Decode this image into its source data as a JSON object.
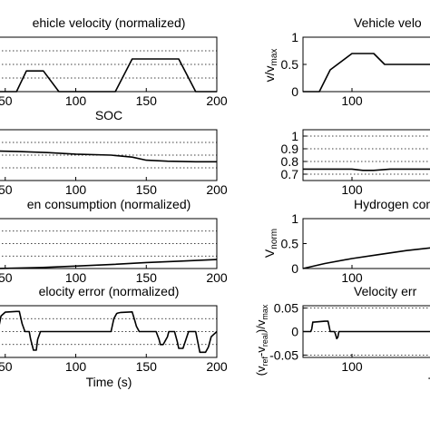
{
  "chart_data": [
    {
      "type": "line",
      "title": "Vehicle velocity (normalized)",
      "title_visible": "ehicle velocity (normalized)",
      "xticks": [
        "50",
        "100",
        "150",
        "200"
      ],
      "xlim": [
        45,
        200
      ],
      "ylim": [
        0,
        1
      ],
      "grid": "dotted-horizontal",
      "series": [
        {
          "x": [
            45,
            58,
            65,
            75,
            77,
            88,
            99,
            125,
            128,
            140,
            155,
            170,
            173,
            185,
            200
          ],
          "y": [
            0,
            0,
            0.38,
            0.38,
            0.38,
            0,
            0,
            0,
            0,
            0.6,
            0.6,
            0.6,
            0.6,
            0,
            0
          ]
        }
      ]
    },
    {
      "type": "line",
      "title": "SOC",
      "xticks": [
        "50",
        "100",
        "150",
        "200"
      ],
      "xlim": [
        45,
        200
      ],
      "ylim": [
        0,
        1
      ],
      "grid": "dotted-horizontal",
      "series": [
        {
          "x": [
            45,
            60,
            80,
            100,
            125,
            140,
            150,
            165,
            185,
            200
          ],
          "y": [
            0.58,
            0.57,
            0.55,
            0.52,
            0.5,
            0.46,
            0.4,
            0.38,
            0.37,
            0.37
          ]
        }
      ]
    },
    {
      "type": "line",
      "title": "Hydrogen consumption (normalized)",
      "title_visible": "en consumption (normalized)",
      "xticks": [
        "50",
        "100",
        "150",
        "200"
      ],
      "xlim": [
        45,
        200
      ],
      "ylim": [
        0,
        1
      ],
      "grid": "dotted-horizontal",
      "series": [
        {
          "x": [
            45,
            75,
            100,
            125,
            150,
            175,
            200
          ],
          "y": [
            0,
            0.02,
            0.05,
            0.08,
            0.12,
            0.15,
            0.18
          ]
        }
      ]
    },
    {
      "type": "line",
      "title": "Velocity error (normalized)",
      "title_visible": "elocity error (normalized)",
      "xticks": [
        "50",
        "100",
        "150",
        "200"
      ],
      "xlabel": "Time (s)",
      "xlim": [
        45,
        200
      ],
      "ylim": [
        -1,
        1
      ],
      "grid": "dotted-horizontal",
      "series": [
        {
          "x": [
            45,
            47,
            50,
            58,
            60,
            62,
            64,
            65,
            67,
            68,
            70,
            72,
            73,
            75,
            77,
            78,
            86,
            98,
            104,
            112,
            125,
            127,
            129,
            130,
            132,
            140,
            142,
            143,
            145,
            157,
            159,
            160,
            162,
            165,
            166,
            170,
            172,
            173,
            176,
            180,
            184,
            185,
            188,
            192,
            194,
            196,
            200
          ],
          "y": [
            0.05,
            0.6,
            0.75,
            0.78,
            0.78,
            0.3,
            0,
            0,
            0,
            -0.3,
            -0.72,
            -0.72,
            -0.3,
            0,
            0,
            0,
            0,
            0,
            0,
            0,
            0,
            0.5,
            0.7,
            0.72,
            0.74,
            0.76,
            0.4,
            0.2,
            0,
            0,
            -0.3,
            -0.5,
            -0.5,
            -0.2,
            0,
            0,
            -0.4,
            -0.65,
            -0.65,
            0,
            0,
            0,
            -0.8,
            -0.8,
            -0.6,
            -0.2,
            0
          ]
        }
      ]
    },
    {
      "type": "line",
      "title": "Vehicle velocity",
      "title_visible": "Vehicle velo",
      "ylabel": "v/v_max",
      "yticks": [
        "1",
        "0.5",
        "0"
      ],
      "ylim": [
        0,
        1
      ],
      "xticks": [
        "100"
      ],
      "xlim": [
        55,
        175
      ],
      "series": [
        {
          "x": [
            55,
            70,
            80,
            100,
            120,
            130,
            175
          ],
          "y": [
            0,
            0,
            0.4,
            0.7,
            0.7,
            0.5,
            0.5
          ]
        }
      ]
    },
    {
      "type": "line",
      "title": "",
      "yticks": [
        "1",
        "0.9",
        "0.8",
        "0.7"
      ],
      "ylim": [
        0.65,
        1.05
      ],
      "xticks": [
        "100"
      ],
      "xlim": [
        55,
        175
      ],
      "grid": "dotted-horizontal",
      "series": [
        {
          "x": [
            55,
            80,
            100,
            110,
            120,
            135,
            150,
            175
          ],
          "y": [
            0.74,
            0.74,
            0.74,
            0.73,
            0.73,
            0.74,
            0.74,
            0.74
          ]
        }
      ]
    },
    {
      "type": "line",
      "title": "Hydrogen consumption",
      "title_visible": "Hydrogen consu",
      "ylabel": "V_norm",
      "yticks": [
        "1",
        "0.5",
        "0"
      ],
      "ylim": [
        0,
        1
      ],
      "xticks": [
        "100"
      ],
      "xlim": [
        55,
        175
      ],
      "series": [
        {
          "x": [
            55,
            75,
            100,
            125,
            150,
            175
          ],
          "y": [
            0,
            0.1,
            0.2,
            0.28,
            0.36,
            0.42
          ]
        }
      ]
    },
    {
      "type": "line",
      "title": "Velocity error",
      "title_visible": "Velocity err",
      "ylabel": "(v_ref-v_real)/v_max",
      "xlabel_visible": "T",
      "yticks": [
        "0.05",
        "0",
        "-0.05"
      ],
      "ylim": [
        -0.055,
        0.055
      ],
      "xticks": [
        "100"
      ],
      "xlim": [
        55,
        175
      ],
      "grid": "dotted-horizontal",
      "series": [
        {
          "x": [
            55,
            62,
            63,
            64,
            65,
            75,
            78,
            80,
            82,
            84,
            85,
            86,
            87,
            88,
            175
          ],
          "y": [
            0,
            0,
            0.005,
            0.02,
            0.02,
            0.022,
            0.022,
            0,
            0,
            0,
            -0.007,
            -0.015,
            -0.012,
            0,
            0
          ]
        }
      ]
    }
  ]
}
